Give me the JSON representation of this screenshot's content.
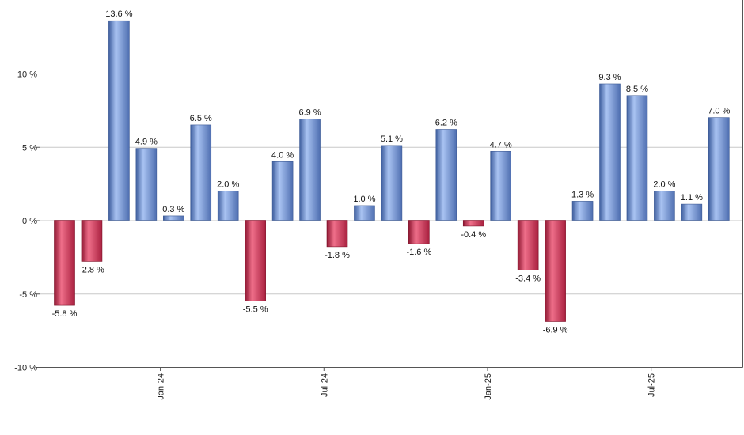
{
  "chart_data": {
    "type": "bar",
    "title": "",
    "xlabel": "",
    "ylabel": "",
    "ylim": [
      -10,
      15
    ],
    "grid": true,
    "y_ticks": [
      {
        "value": 10,
        "label": "10 %"
      },
      {
        "value": 5,
        "label": "5 %"
      },
      {
        "value": 0,
        "label": "0 %"
      },
      {
        "value": -5,
        "label": "-5 %"
      },
      {
        "value": -10,
        "label": "-10 %"
      }
    ],
    "x_ticks": [
      {
        "index": 3.5,
        "label": "Jan-24"
      },
      {
        "index": 9.5,
        "label": "Jul-24"
      },
      {
        "index": 15.5,
        "label": "Jan-25"
      },
      {
        "index": 21.5,
        "label": "Jul-25"
      }
    ],
    "reference_line": {
      "value": 10,
      "color": "#2e7d32"
    },
    "values": [
      -5.8,
      -2.8,
      13.6,
      4.9,
      0.3,
      6.5,
      2.0,
      -5.5,
      4.0,
      6.9,
      -1.8,
      1.0,
      5.1,
      -1.6,
      6.2,
      -0.4,
      4.7,
      -3.4,
      -6.9,
      1.3,
      9.3,
      8.5,
      2.0,
      1.1,
      7.0
    ],
    "labels": [
      "-5.8 %",
      "-2.8 %",
      "13.6 %",
      "4.9 %",
      "0.3 %",
      "6.5 %",
      "2.0 %",
      "-5.5 %",
      "4.0 %",
      "6.9 %",
      "-1.8 %",
      "1.0 %",
      "5.1 %",
      "-1.6 %",
      "6.2 %",
      "-0.4 %",
      "4.7 %",
      "-3.4 %",
      "-6.9 %",
      "1.3 %",
      "9.3 %",
      "8.5 %",
      "2.0 %",
      "1.1 %",
      "7.0 %"
    ],
    "colors": {
      "positive": "#6f93de",
      "negative": "#cc2e4f",
      "grid": "#c8c8c8",
      "axis": "#555555"
    }
  }
}
